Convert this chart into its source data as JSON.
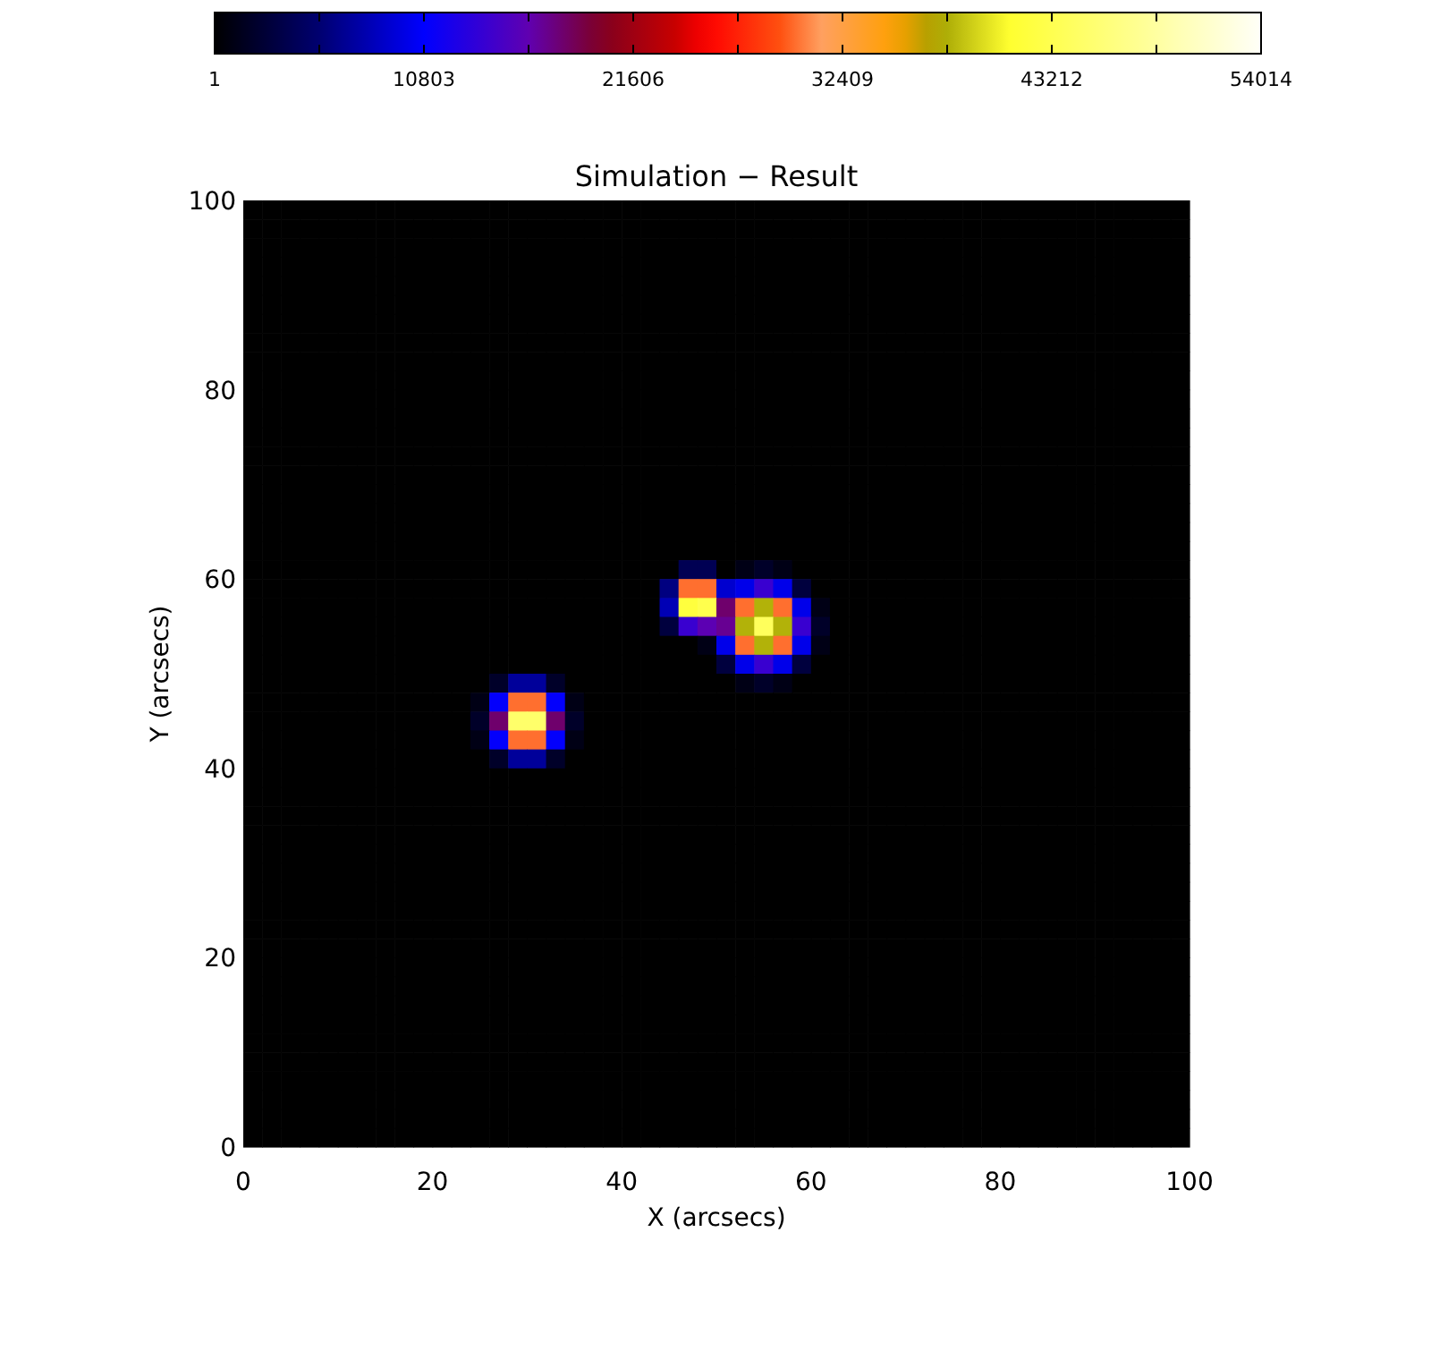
{
  "chart_data": {
    "type": "heatmap",
    "title": "Simulation − Result",
    "xlabel": "X (arcsecs)",
    "ylabel": "Y (arcsecs)",
    "xlim": [
      0,
      100
    ],
    "ylim": [
      0,
      100
    ],
    "xticks": [
      0,
      20,
      40,
      60,
      80,
      100
    ],
    "yticks": [
      0,
      20,
      40,
      60,
      80,
      100
    ],
    "clim": [
      1,
      54014
    ],
    "cticks": [
      1,
      {
        "value": 5402,
        "label": null
      },
      10803,
      {
        "value": 16205,
        "label": null
      },
      21606,
      {
        "value": 27008,
        "label": null
      },
      32409,
      {
        "value": 37811,
        "label": null
      },
      43212,
      {
        "value": 48613,
        "label": null
      },
      54014
    ],
    "x": [
      1,
      3,
      5,
      7,
      9,
      11,
      13,
      15,
      17,
      19,
      21,
      23,
      25,
      27,
      29,
      31,
      33,
      35,
      37,
      39,
      41,
      43,
      45,
      47,
      49,
      51,
      53,
      55,
      57,
      59,
      61,
      63,
      65,
      67,
      69,
      71,
      73,
      75,
      77,
      79,
      81,
      83,
      85,
      87,
      89,
      91,
      93,
      95,
      97,
      99
    ],
    "y": [
      99,
      97,
      95,
      93,
      91,
      89,
      87,
      85,
      83,
      81,
      79,
      77,
      75,
      73,
      71,
      69,
      67,
      65,
      63,
      61,
      59,
      57,
      55,
      53,
      51,
      49,
      47,
      45,
      43,
      41,
      39,
      37,
      35,
      33,
      31,
      29,
      27,
      25,
      23,
      21,
      19,
      17,
      15,
      13,
      11,
      9,
      7,
      5,
      3,
      1
    ],
    "cells": [
      [
        1,
        1,
        1,
        1,
        1,
        1,
        1,
        1,
        1,
        1,
        1,
        1,
        1,
        1,
        1,
        1,
        1,
        1,
        1,
        1,
        1,
        1,
        1,
        1,
        1,
        1,
        1,
        1,
        1,
        1,
        1,
        1,
        1,
        1,
        1,
        1,
        1,
        1,
        1,
        1,
        1,
        1,
        1,
        1,
        1,
        1,
        1,
        1,
        1,
        1
      ],
      [
        1,
        1,
        1,
        1,
        1,
        1,
        1,
        1,
        1,
        1,
        1,
        1,
        1,
        1,
        1,
        1,
        1,
        1,
        1,
        1,
        1,
        1,
        1,
        1,
        1,
        1,
        1,
        1,
        1,
        1,
        1,
        1,
        1,
        1,
        1,
        1,
        1,
        1,
        1,
        1,
        1,
        1,
        1,
        1,
        1,
        1,
        1,
        1,
        1,
        1
      ],
      [
        1,
        1,
        1,
        1,
        1,
        1,
        1,
        1,
        1,
        1,
        1,
        1,
        1,
        1,
        1,
        1,
        1,
        1,
        1,
        1,
        1,
        1,
        1,
        1,
        1,
        1,
        1,
        1,
        1,
        1,
        1,
        1,
        1,
        1,
        1,
        1,
        1,
        1,
        1,
        1,
        1,
        1,
        1,
        1,
        1,
        1,
        1,
        1,
        1,
        1
      ],
      [
        1,
        1,
        1,
        1,
        1,
        1,
        1,
        1,
        1,
        1,
        1,
        1,
        1,
        1,
        1,
        1,
        1,
        1,
        1,
        1,
        1,
        1,
        1,
        1,
        1,
        1,
        1,
        1,
        1,
        1,
        1,
        1,
        1,
        1,
        1,
        1,
        1,
        1,
        1,
        1,
        1,
        1,
        1,
        1,
        1,
        1,
        1,
        1,
        1,
        1
      ],
      [
        1,
        1,
        1,
        1,
        1,
        1,
        1,
        1,
        1,
        1,
        1,
        1,
        1,
        1,
        1,
        1,
        1,
        1,
        1,
        1,
        1,
        1,
        1,
        1,
        1,
        1,
        1,
        1,
        1,
        1,
        1,
        1,
        1,
        1,
        1,
        1,
        1,
        1,
        1,
        1,
        1,
        1,
        1,
        1,
        1,
        1,
        1,
        1,
        1,
        1
      ],
      [
        1,
        1,
        1,
        1,
        1,
        1,
        1,
        1,
        1,
        1,
        1,
        1,
        1,
        1,
        1,
        1,
        1,
        1,
        1,
        1,
        1,
        1,
        1,
        1,
        1,
        1,
        1,
        1,
        1,
        1,
        1,
        1,
        1,
        1,
        1,
        1,
        1,
        1,
        1,
        1,
        1,
        1,
        1,
        1,
        1,
        1,
        1,
        1,
        1,
        1
      ],
      [
        1,
        1,
        1,
        1,
        1,
        1,
        1,
        1,
        1,
        1,
        1,
        1,
        1,
        1,
        1,
        1,
        1,
        1,
        1,
        1,
        1,
        1,
        1,
        1,
        1,
        1,
        1,
        1,
        1,
        1,
        1,
        1,
        1,
        1,
        1,
        1,
        1,
        1,
        1,
        1,
        1,
        1,
        1,
        1,
        1,
        1,
        1,
        1,
        1,
        1
      ],
      [
        1,
        1,
        1,
        1,
        1,
        1,
        1,
        1,
        1,
        1,
        1,
        1,
        1,
        1,
        1,
        1,
        1,
        1,
        1,
        1,
        1,
        1,
        1,
        1,
        1,
        1,
        1,
        1,
        1,
        1,
        1,
        1,
        1,
        1,
        1,
        1,
        1,
        1,
        1,
        1,
        1,
        1,
        1,
        1,
        1,
        1,
        1,
        1,
        1,
        1
      ],
      [
        1,
        1,
        1,
        1,
        1,
        1,
        1,
        1,
        1,
        1,
        1,
        1,
        1,
        1,
        1,
        1,
        1,
        1,
        1,
        1,
        1,
        1,
        1,
        1,
        1,
        1,
        1,
        1,
        1,
        1,
        1,
        1,
        1,
        1,
        1,
        1,
        1,
        1,
        1,
        1,
        1,
        1,
        1,
        1,
        1,
        1,
        1,
        1,
        1,
        1
      ],
      [
        1,
        1,
        1,
        1,
        1,
        1,
        1,
        1,
        1,
        1,
        1,
        1,
        1,
        1,
        1,
        1,
        1,
        1,
        1,
        1,
        1,
        1,
        1,
        1,
        1,
        1,
        1,
        1,
        1,
        1,
        1,
        1,
        1,
        1,
        1,
        1,
        1,
        1,
        1,
        1,
        1,
        1,
        1,
        1,
        1,
        1,
        1,
        1,
        1,
        1
      ],
      [
        1,
        1,
        1,
        1,
        1,
        1,
        1,
        1,
        1,
        1,
        1,
        1,
        1,
        1,
        1,
        1,
        1,
        1,
        1,
        1,
        1,
        1,
        1,
        1,
        1,
        1,
        1,
        1,
        1,
        1,
        1,
        1,
        1,
        1,
        1,
        1,
        1,
        1,
        1,
        1,
        1,
        1,
        1,
        1,
        1,
        1,
        1,
        1,
        1,
        1
      ],
      [
        1,
        1,
        1,
        1,
        1,
        1,
        1,
        1,
        1,
        1,
        1,
        1,
        1,
        1,
        1,
        1,
        1,
        1,
        1,
        1,
        1,
        1,
        1,
        1,
        1,
        1,
        1,
        1,
        1,
        1,
        1,
        1,
        1,
        1,
        1,
        1,
        1,
        1,
        1,
        1,
        1,
        1,
        1,
        1,
        1,
        1,
        1,
        1,
        1,
        1
      ],
      [
        1,
        1,
        1,
        1,
        1,
        1,
        1,
        1,
        1,
        1,
        1,
        1,
        1,
        1,
        1,
        1,
        1,
        1,
        1,
        1,
        1,
        1,
        1,
        1,
        1,
        1,
        1,
        1,
        1,
        1,
        1,
        1,
        1,
        1,
        1,
        1,
        1,
        1,
        1,
        1,
        1,
        1,
        1,
        1,
        1,
        1,
        1,
        1,
        1,
        1
      ],
      [
        1,
        1,
        1,
        1,
        1,
        1,
        1,
        1,
        1,
        1,
        1,
        1,
        1,
        1,
        1,
        1,
        1,
        1,
        1,
        1,
        1,
        1,
        1,
        1,
        1,
        1,
        1,
        1,
        1,
        1,
        1,
        1,
        1,
        1,
        1,
        1,
        1,
        1,
        1,
        1,
        1,
        1,
        1,
        1,
        1,
        1,
        1,
        1,
        1,
        1
      ],
      [
        1,
        1,
        1,
        1,
        1,
        1,
        1,
        1,
        1,
        1,
        1,
        1,
        1,
        1,
        1,
        1,
        1,
        1,
        1,
        1,
        1,
        1,
        1,
        1,
        1,
        1,
        1,
        1,
        1,
        1,
        1,
        1,
        1,
        1,
        1,
        1,
        1,
        1,
        1,
        1,
        1,
        1,
        1,
        1,
        1,
        1,
        1,
        1,
        1,
        1
      ],
      [
        1,
        1,
        1,
        1,
        1,
        1,
        1,
        1,
        1,
        1,
        1,
        1,
        1,
        1,
        1,
        1,
        1,
        1,
        1,
        1,
        1,
        1,
        1,
        1,
        1,
        1,
        1,
        1,
        1,
        1,
        1,
        1,
        1,
        1,
        1,
        1,
        1,
        1,
        1,
        1,
        1,
        1,
        1,
        1,
        1,
        1,
        1,
        1,
        1,
        1
      ],
      [
        1,
        1,
        1,
        1,
        1,
        1,
        1,
        1,
        1,
        1,
        1,
        1,
        1,
        1,
        1,
        1,
        1,
        1,
        1,
        1,
        1,
        1,
        1,
        1,
        1,
        1,
        1,
        1,
        1,
        1,
        1,
        1,
        1,
        1,
        1,
        1,
        1,
        1,
        1,
        1,
        1,
        1,
        1,
        1,
        1,
        1,
        1,
        1,
        1,
        1
      ],
      [
        1,
        1,
        1,
        1,
        1,
        1,
        1,
        1,
        1,
        1,
        1,
        1,
        1,
        1,
        1,
        1,
        1,
        1,
        1,
        1,
        1,
        1,
        1,
        1,
        1,
        1,
        1,
        1,
        1,
        1,
        1,
        1,
        1,
        1,
        1,
        1,
        1,
        1,
        1,
        1,
        1,
        1,
        1,
        1,
        1,
        1,
        1,
        1,
        1,
        1
      ],
      [
        1,
        1,
        1,
        1,
        1,
        1,
        1,
        1,
        1,
        1,
        1,
        1,
        1,
        1,
        1,
        1,
        1,
        1,
        1,
        1,
        1,
        1,
        1,
        1,
        1,
        1,
        1,
        1,
        1,
        1,
        1,
        1,
        1,
        1,
        1,
        1,
        1,
        1,
        1,
        1,
        1,
        1,
        1,
        1,
        1,
        1,
        1,
        1,
        1,
        1
      ],
      [
        1,
        1,
        1,
        1,
        1,
        1,
        1,
        1,
        1,
        1,
        1,
        1,
        1,
        1,
        1,
        1,
        1,
        1,
        1,
        1,
        1,
        1,
        1,
        4000,
        4000,
        1,
        1000,
        2000,
        1000,
        1,
        1,
        1,
        1,
        1,
        1,
        1,
        1,
        1,
        1,
        1,
        1,
        1,
        1,
        1,
        1,
        1,
        1,
        1,
        1,
        1
      ],
      [
        1,
        1,
        1,
        1,
        1,
        1,
        1,
        1,
        1,
        1,
        1,
        1,
        1,
        1,
        1,
        1,
        1,
        1,
        1,
        1,
        1,
        1,
        6000,
        30000,
        30000,
        9000,
        10000,
        14000,
        10000,
        3000,
        1,
        1,
        1,
        1,
        1,
        1,
        1,
        1,
        1,
        1,
        1,
        1,
        1,
        1,
        1,
        1,
        1,
        1,
        1,
        1
      ],
      [
        1,
        1,
        1,
        1,
        1,
        1,
        1,
        1,
        1,
        1,
        1,
        1,
        1,
        1,
        1,
        1,
        1,
        1,
        1,
        1,
        1,
        1,
        8000,
        42000,
        43000,
        18000,
        30000,
        38000,
        30000,
        10000,
        1000,
        1,
        1,
        1,
        1,
        1,
        1,
        1,
        1,
        1,
        1,
        1,
        1,
        1,
        1,
        1,
        1,
        1,
        1,
        1
      ],
      [
        1,
        1,
        1,
        1,
        1,
        1,
        1,
        1,
        1,
        1,
        1,
        1,
        1,
        1,
        1,
        1,
        1,
        1,
        1,
        1,
        1,
        1,
        3000,
        14000,
        16000,
        17000,
        38000,
        44000,
        38000,
        14000,
        2000,
        1,
        1,
        1,
        1,
        1,
        1,
        1,
        1,
        1,
        1,
        1,
        1,
        1,
        1,
        1,
        1,
        1,
        1,
        1
      ],
      [
        1,
        1,
        1,
        1,
        1,
        1,
        1,
        1,
        1,
        1,
        1,
        1,
        1,
        1,
        1,
        1,
        1,
        1,
        1,
        1,
        1,
        1,
        1,
        1,
        1000,
        10000,
        30000,
        38000,
        30000,
        10000,
        1000,
        1,
        1,
        1,
        1,
        1,
        1,
        1,
        1,
        1,
        1,
        1,
        1,
        1,
        1,
        1,
        1,
        1,
        1,
        1
      ],
      [
        1,
        1,
        1,
        1,
        1,
        1,
        1,
        1,
        1,
        1,
        1,
        1,
        1,
        1,
        1,
        1,
        1,
        1,
        1,
        1,
        1,
        1,
        1,
        1,
        1,
        3000,
        10000,
        14000,
        10000,
        3000,
        1,
        1,
        1,
        1,
        1,
        1,
        1,
        1,
        1,
        1,
        1,
        1,
        1,
        1,
        1,
        1,
        1,
        1,
        1,
        1
      ],
      [
        1,
        1,
        1,
        1,
        1,
        1,
        1,
        1,
        1,
        1,
        1,
        1,
        1,
        2000,
        7000,
        7000,
        2000,
        1,
        1,
        1,
        1,
        1,
        1,
        1,
        1,
        1,
        1000,
        2000,
        1000,
        1,
        1,
        1,
        1,
        1,
        1,
        1,
        1,
        1,
        1,
        1,
        1,
        1,
        1,
        1,
        1,
        1,
        1,
        1,
        1,
        1
      ],
      [
        1,
        1,
        1,
        1,
        1,
        1,
        1,
        1,
        1,
        1,
        1,
        1,
        1000,
        11000,
        30000,
        30000,
        11000,
        1000,
        1,
        1,
        1,
        1,
        1,
        1,
        1,
        1,
        1,
        1,
        1,
        1,
        1,
        1,
        1,
        1,
        1,
        1,
        1,
        1,
        1,
        1,
        1,
        1,
        1,
        1,
        1,
        1,
        1,
        1,
        1,
        1
      ],
      [
        1,
        1,
        1,
        1,
        1,
        1,
        1,
        1,
        1,
        1,
        1,
        1,
        2000,
        18000,
        45000,
        45000,
        18000,
        2000,
        1,
        1,
        1,
        1,
        1,
        1,
        1,
        1,
        1,
        1,
        1,
        1,
        1,
        1,
        1,
        1,
        1,
        1,
        1,
        1,
        1,
        1,
        1,
        1,
        1,
        1,
        1,
        1,
        1,
        1,
        1,
        1
      ],
      [
        1,
        1,
        1,
        1,
        1,
        1,
        1,
        1,
        1,
        1,
        1,
        1,
        1000,
        11000,
        30000,
        30000,
        11000,
        1000,
        1,
        1,
        1,
        1,
        1,
        1,
        1,
        1,
        1,
        1,
        1,
        1,
        1,
        1,
        1,
        1,
        1,
        1,
        1,
        1,
        1,
        1,
        1,
        1,
        1,
        1,
        1,
        1,
        1,
        1,
        1,
        1
      ],
      [
        1,
        1,
        1,
        1,
        1,
        1,
        1,
        1,
        1,
        1,
        1,
        1,
        1,
        2000,
        7000,
        7000,
        2000,
        1,
        1,
        1,
        1,
        1,
        1,
        1,
        1,
        1,
        1,
        1,
        1,
        1,
        1,
        1,
        1,
        1,
        1,
        1,
        1,
        1,
        1,
        1,
        1,
        1,
        1,
        1,
        1,
        1,
        1,
        1,
        1,
        1
      ],
      [
        1,
        1,
        1,
        1,
        1,
        1,
        1,
        1,
        1,
        1,
        1,
        1,
        1,
        1,
        1,
        1,
        1,
        1,
        1,
        1,
        1,
        1,
        1,
        1,
        1,
        1,
        1,
        1,
        1,
        1,
        1,
        1,
        1,
        1,
        1,
        1,
        1,
        1,
        1,
        1,
        1,
        1,
        1,
        1,
        1,
        1,
        1,
        1,
        1,
        1
      ],
      [
        1,
        1,
        1,
        1,
        1,
        1,
        1,
        1,
        1,
        1,
        1,
        1,
        1,
        1,
        1,
        1,
        1,
        1,
        1,
        1,
        1,
        1,
        1,
        1,
        1,
        1,
        1,
        1,
        1,
        1,
        1,
        1,
        1,
        1,
        1,
        1,
        1,
        1,
        1,
        1,
        1,
        1,
        1,
        1,
        1,
        1,
        1,
        1,
        1,
        1
      ],
      [
        1,
        1,
        1,
        1,
        1,
        1,
        1,
        1,
        1,
        1,
        1,
        1,
        1,
        1,
        1,
        1,
        1,
        1,
        1,
        1,
        1,
        1,
        1,
        1,
        1,
        1,
        1,
        1,
        1,
        1,
        1,
        1,
        1,
        1,
        1,
        1,
        1,
        1,
        1,
        1,
        1,
        1,
        1,
        1,
        1,
        1,
        1,
        1,
        1,
        1
      ],
      [
        1,
        1,
        1,
        1,
        1,
        1,
        1,
        1,
        1,
        1,
        1,
        1,
        1,
        1,
        1,
        1,
        1,
        1,
        1,
        1,
        1,
        1,
        1,
        1,
        1,
        1,
        1,
        1,
        1,
        1,
        1,
        1,
        1,
        1,
        1,
        1,
        1,
        1,
        1,
        1,
        1,
        1,
        1,
        1,
        1,
        1,
        1,
        1,
        1,
        1
      ],
      [
        1,
        1,
        1,
        1,
        1,
        1,
        1,
        1,
        1,
        1,
        1,
        1,
        1,
        1,
        1,
        1,
        1,
        1,
        1,
        1,
        1,
        1,
        1,
        1,
        1,
        1,
        1,
        1,
        1,
        1,
        1,
        1,
        1,
        1,
        1,
        1,
        1,
        1,
        1,
        1,
        1,
        1,
        1,
        1,
        1,
        1,
        1,
        1,
        1,
        1
      ],
      [
        1,
        1,
        1,
        1,
        1,
        1,
        1,
        1,
        1,
        1,
        1,
        1,
        1,
        1,
        1,
        1,
        1,
        1,
        1,
        1,
        1,
        1,
        1,
        1,
        1,
        1,
        1,
        1,
        1,
        1,
        1,
        1,
        1,
        1,
        1,
        1,
        1,
        1,
        1,
        1,
        1,
        1,
        1,
        1,
        1,
        1,
        1,
        1,
        1,
        1
      ],
      [
        1,
        1,
        1,
        1,
        1,
        1,
        1,
        1,
        1,
        1,
        1,
        1,
        1,
        1,
        1,
        1,
        1,
        1,
        1,
        1,
        1,
        1,
        1,
        1,
        1,
        1,
        1,
        1,
        1,
        1,
        1,
        1,
        1,
        1,
        1,
        1,
        1,
        1,
        1,
        1,
        1,
        1,
        1,
        1,
        1,
        1,
        1,
        1,
        1,
        1
      ],
      [
        1,
        1,
        1,
        1,
        1,
        1,
        1,
        1,
        1,
        1,
        1,
        1,
        1,
        1,
        1,
        1,
        1,
        1,
        1,
        1,
        1,
        1,
        1,
        1,
        1,
        1,
        1,
        1,
        1,
        1,
        1,
        1,
        1,
        1,
        1,
        1,
        1,
        1,
        1,
        1,
        1,
        1,
        1,
        1,
        1,
        1,
        1,
        1,
        1,
        1
      ],
      [
        1,
        1,
        1,
        1,
        1,
        1,
        1,
        1,
        1,
        1,
        1,
        1,
        1,
        1,
        1,
        1,
        1,
        1,
        1,
        1,
        1,
        1,
        1,
        1,
        1,
        1,
        1,
        1,
        1,
        1,
        1,
        1,
        1,
        1,
        1,
        1,
        1,
        1,
        1,
        1,
        1,
        1,
        1,
        1,
        1,
        1,
        1,
        1,
        1,
        1
      ],
      [
        1,
        1,
        1,
        1,
        1,
        1,
        1,
        1,
        1,
        1,
        1,
        1,
        1,
        1,
        1,
        1,
        1,
        1,
        1,
        1,
        1,
        1,
        1,
        1,
        1,
        1,
        1,
        1,
        1,
        1,
        1,
        1,
        1,
        1,
        1,
        1,
        1,
        1,
        1,
        1,
        1,
        1,
        1,
        1,
        1,
        1,
        1,
        1,
        1,
        1
      ],
      [
        1,
        1,
        1,
        1,
        1,
        1,
        1,
        1,
        1,
        1,
        1,
        1,
        1,
        1,
        1,
        1,
        1,
        1,
        1,
        1,
        1,
        1,
        1,
        1,
        1,
        1,
        1,
        1,
        1,
        1,
        1,
        1,
        1,
        1,
        1,
        1,
        1,
        1,
        1,
        1,
        1,
        1,
        1,
        1,
        1,
        1,
        1,
        1,
        1,
        1
      ],
      [
        1,
        1,
        1,
        1,
        1,
        1,
        1,
        1,
        1,
        1,
        1,
        1,
        1,
        1,
        1,
        1,
        1,
        1,
        1,
        1,
        1,
        1,
        1,
        1,
        1,
        1,
        1,
        1,
        1,
        1,
        1,
        1,
        1,
        1,
        1,
        1,
        1,
        1,
        1,
        1,
        1,
        1,
        1,
        1,
        1,
        1,
        1,
        1,
        1,
        1
      ],
      [
        1,
        1,
        1,
        1,
        1,
        1,
        1,
        1,
        1,
        1,
        1,
        1,
        1,
        1,
        1,
        1,
        1,
        1,
        1,
        1,
        1,
        1,
        1,
        1,
        1,
        1,
        1,
        1,
        1,
        1,
        1,
        1,
        1,
        1,
        1,
        1,
        1,
        1,
        1,
        1,
        1,
        1,
        1,
        1,
        1,
        1,
        1,
        1,
        1,
        1
      ],
      [
        1,
        1,
        1,
        1,
        1,
        1,
        1,
        1,
        1,
        1,
        1,
        1,
        1,
        1,
        1,
        1,
        1,
        1,
        1,
        1,
        1,
        1,
        1,
        1,
        1,
        1,
        1,
        1,
        1,
        1,
        1,
        1,
        1,
        1,
        1,
        1,
        1,
        1,
        1,
        1,
        1,
        1,
        1,
        1,
        1,
        1,
        1,
        1,
        1,
        1
      ],
      [
        1,
        1,
        1,
        1,
        1,
        1,
        1,
        1,
        1,
        1,
        1,
        1,
        1,
        1,
        1,
        1,
        1,
        1,
        1,
        1,
        1,
        1,
        1,
        1,
        1,
        1,
        1,
        1,
        1,
        1,
        1,
        1,
        1,
        1,
        1,
        1,
        1,
        1,
        1,
        1,
        1,
        1,
        1,
        1,
        1,
        1,
        1,
        1,
        1,
        1
      ],
      [
        1,
        1,
        1,
        1,
        1,
        1,
        1,
        1,
        1,
        1,
        1,
        1,
        1,
        1,
        1,
        1,
        1,
        1,
        1,
        1,
        1,
        1,
        1,
        1,
        1,
        1,
        1,
        1,
        1,
        1,
        1,
        1,
        1,
        1,
        1,
        1,
        1,
        1,
        1,
        1,
        1,
        1,
        1,
        1,
        1,
        1,
        1,
        1,
        1,
        1
      ],
      [
        1,
        1,
        1,
        1,
        1,
        1,
        1,
        1,
        1,
        1,
        1,
        1,
        1,
        1,
        1,
        1,
        1,
        1,
        1,
        1,
        1,
        1,
        1,
        1,
        1,
        1,
        1,
        1,
        1,
        1,
        1,
        1,
        1,
        1,
        1,
        1,
        1,
        1,
        1,
        1,
        1,
        1,
        1,
        1,
        1,
        1,
        1,
        1,
        1,
        1
      ],
      [
        1,
        1,
        1,
        1,
        1,
        1,
        1,
        1,
        1,
        1,
        1,
        1,
        1,
        1,
        1,
        1,
        1,
        1,
        1,
        1,
        1,
        1,
        1,
        1,
        1,
        1,
        1,
        1,
        1,
        1,
        1,
        1,
        1,
        1,
        1,
        1,
        1,
        1,
        1,
        1,
        1,
        1,
        1,
        1,
        1,
        1,
        1,
        1,
        1,
        1
      ],
      [
        1,
        1,
        1,
        1,
        1,
        1,
        1,
        1,
        1,
        1,
        1,
        1,
        1,
        1,
        1,
        1,
        1,
        1,
        1,
        1,
        1,
        1,
        1,
        1,
        1,
        1,
        1,
        1,
        1,
        1,
        1,
        1,
        1,
        1,
        1,
        1,
        1,
        1,
        1,
        1,
        1,
        1,
        1,
        1,
        1,
        1,
        1,
        1,
        1,
        1
      ],
      [
        1,
        1,
        1,
        1,
        1,
        1,
        1,
        1,
        1,
        1,
        1,
        1,
        1,
        1,
        1,
        1,
        1,
        1,
        1,
        1,
        1,
        1,
        1,
        1,
        1,
        1,
        1,
        1,
        1,
        1,
        1,
        1,
        1,
        1,
        1,
        1,
        1,
        1,
        1,
        1,
        1,
        1,
        1,
        1,
        1,
        1,
        1,
        1,
        1,
        1
      ]
    ]
  }
}
